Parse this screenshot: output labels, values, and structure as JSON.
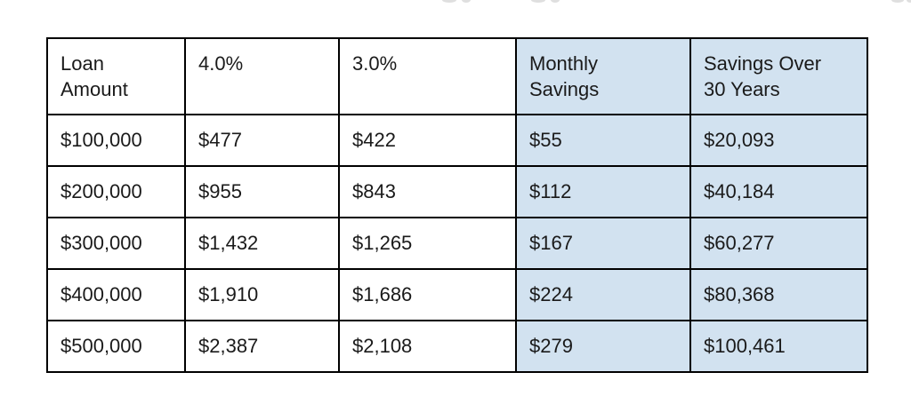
{
  "page": {
    "background": "#ffffff",
    "highlight_color": "#d2e2f0",
    "border_color": "#000000",
    "text_color": "#1a1a1a"
  },
  "table": {
    "columns": [
      "Loan\nAmount",
      "4.0%",
      "3.0%",
      "Monthly\nSavings",
      "Savings Over\n30 Years"
    ],
    "highlighted_columns": [
      3,
      4
    ],
    "rows": [
      [
        "$100,000",
        "$477",
        "$422",
        "$55",
        "$20,093"
      ],
      [
        "$200,000",
        "$955",
        "$843",
        "$112",
        "$40,184"
      ],
      [
        "$300,000",
        "$1,432",
        "$1,265",
        "$167",
        "$60,277"
      ],
      [
        "$400,000",
        "$1,910",
        "$1,686",
        "$224",
        "$80,368"
      ],
      [
        "$500,000",
        "$2,387",
        "$2,108",
        "$279",
        "$100,461"
      ]
    ]
  }
}
